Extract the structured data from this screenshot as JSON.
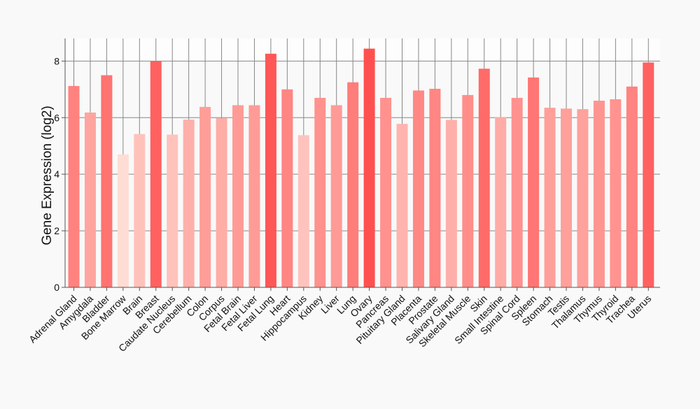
{
  "chart_data": {
    "type": "bar",
    "ylabel": "Gene Expression (log2)",
    "xlabel": "",
    "title": "",
    "ylim": [
      0,
      8.8
    ],
    "yticks": [
      0,
      2,
      4,
      6,
      8
    ],
    "grid": true,
    "bar_color_low": "#ffddd5",
    "bar_color_high": "#ff5050",
    "categories": [
      "Adrenal Gland",
      "Amygdala",
      "Bladder",
      "Bone Marrow",
      "Brain",
      "Breast",
      "Caudate Nucleus",
      "Cerebellum",
      "Colon",
      "Corpus",
      "Fetal Brain",
      "Fetal Liver",
      "Fetal Lung",
      "Heart",
      "Hippocampus",
      "Kidney",
      "Liver",
      "Lung",
      "Ovary",
      "Pancreas",
      "Pituitary Gland",
      "Placenta",
      "Prostate",
      "Salivary Gland",
      "Skeletal Muscle",
      "Skin",
      "Small Intestine",
      "Spinal Cord",
      "Spleen",
      "Stomach",
      "Testis",
      "Thalamus",
      "Thymus",
      "Thyroid",
      "Trachea",
      "Uterus"
    ],
    "values": [
      7.12,
      6.18,
      7.5,
      4.7,
      5.42,
      8.0,
      5.4,
      5.93,
      6.38,
      5.98,
      6.44,
      6.44,
      8.26,
      7.0,
      5.38,
      6.7,
      6.44,
      7.25,
      8.44,
      6.7,
      5.78,
      6.96,
      7.02,
      5.92,
      6.8,
      7.73,
      6.02,
      6.7,
      7.42,
      6.35,
      6.32,
      6.3,
      6.6,
      6.65,
      7.1,
      7.95
    ]
  }
}
